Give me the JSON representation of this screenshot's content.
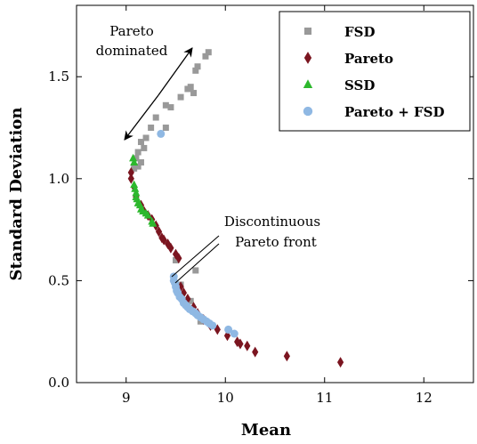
{
  "chart_data": {
    "type": "scatter",
    "xlabel": "Mean",
    "ylabel": "Standard Deviation",
    "xlim": [
      8.5,
      12.5
    ],
    "ylim": [
      0.0,
      1.85
    ],
    "xticks": [
      9,
      10,
      11,
      12
    ],
    "yticks": [
      0.0,
      0.5,
      1.0,
      1.5
    ],
    "grid": false,
    "legend_position": "top-right",
    "annotations": {
      "pareto_dominated": [
        "Pareto",
        "dominated"
      ],
      "discontinuous": [
        "Discontinuous",
        "Pareto front"
      ]
    },
    "series": [
      {
        "name": "FSD",
        "marker": "square",
        "color": "#999999",
        "points": [
          [
            9.8,
            1.6
          ],
          [
            9.83,
            1.62
          ],
          [
            9.7,
            1.53
          ],
          [
            9.72,
            1.55
          ],
          [
            9.62,
            1.44
          ],
          [
            9.65,
            1.45
          ],
          [
            9.68,
            1.42
          ],
          [
            9.55,
            1.4
          ],
          [
            9.45,
            1.35
          ],
          [
            9.4,
            1.36
          ],
          [
            9.3,
            1.3
          ],
          [
            9.25,
            1.25
          ],
          [
            9.4,
            1.25
          ],
          [
            9.2,
            1.2
          ],
          [
            9.15,
            1.18
          ],
          [
            9.18,
            1.15
          ],
          [
            9.12,
            1.13
          ],
          [
            9.1,
            1.1
          ],
          [
            9.15,
            1.08
          ],
          [
            9.08,
            1.05
          ],
          [
            9.12,
            1.06
          ],
          [
            9.5,
            0.6
          ],
          [
            9.7,
            0.55
          ],
          [
            9.55,
            0.48
          ],
          [
            9.65,
            0.4
          ],
          [
            9.75,
            0.3
          ]
        ]
      },
      {
        "name": "Pareto",
        "marker": "diamond",
        "color": "#7b1520",
        "points": [
          [
            9.05,
            1.03
          ],
          [
            9.05,
            1.0
          ],
          [
            9.08,
            0.96
          ],
          [
            9.1,
            0.91
          ],
          [
            9.15,
            0.87
          ],
          [
            9.18,
            0.84
          ],
          [
            9.22,
            0.82
          ],
          [
            9.26,
            0.8
          ],
          [
            9.3,
            0.77
          ],
          [
            9.33,
            0.74
          ],
          [
            9.36,
            0.71
          ],
          [
            9.38,
            0.7
          ],
          [
            9.42,
            0.68
          ],
          [
            9.45,
            0.66
          ],
          [
            9.5,
            0.63
          ],
          [
            9.53,
            0.61
          ],
          [
            9.55,
            0.47
          ],
          [
            9.58,
            0.44
          ],
          [
            9.62,
            0.41
          ],
          [
            9.68,
            0.37
          ],
          [
            9.72,
            0.34
          ],
          [
            9.78,
            0.31
          ],
          [
            9.85,
            0.28
          ],
          [
            9.92,
            0.26
          ],
          [
            10.02,
            0.23
          ],
          [
            10.12,
            0.2
          ],
          [
            10.15,
            0.19
          ],
          [
            10.22,
            0.18
          ],
          [
            10.3,
            0.15
          ],
          [
            10.62,
            0.13
          ],
          [
            11.16,
            0.1
          ]
        ]
      },
      {
        "name": "SSD",
        "marker": "triangle",
        "color": "#2db82d",
        "points": [
          [
            9.07,
            1.1
          ],
          [
            9.08,
            1.08
          ],
          [
            9.08,
            0.97
          ],
          [
            9.09,
            0.95
          ],
          [
            9.1,
            0.93
          ],
          [
            9.1,
            0.91
          ],
          [
            9.11,
            0.9
          ],
          [
            9.12,
            0.88
          ],
          [
            9.14,
            0.87
          ],
          [
            9.15,
            0.85
          ],
          [
            9.17,
            0.84
          ],
          [
            9.2,
            0.83
          ],
          [
            9.22,
            0.82
          ],
          [
            9.26,
            0.79
          ],
          [
            9.27,
            0.78
          ]
        ]
      },
      {
        "name": "Pareto + FSD",
        "marker": "circle",
        "color": "#8fb8e3",
        "points": [
          [
            9.35,
            1.22
          ],
          [
            9.48,
            0.52
          ],
          [
            9.48,
            0.5
          ],
          [
            9.49,
            0.49
          ],
          [
            9.5,
            0.47
          ],
          [
            9.51,
            0.45
          ],
          [
            9.52,
            0.44
          ],
          [
            9.54,
            0.42
          ],
          [
            9.56,
            0.41
          ],
          [
            9.58,
            0.39
          ],
          [
            9.6,
            0.38
          ],
          [
            9.62,
            0.37
          ],
          [
            9.64,
            0.36
          ],
          [
            9.67,
            0.35
          ],
          [
            9.7,
            0.34
          ],
          [
            9.72,
            0.33
          ],
          [
            9.75,
            0.32
          ],
          [
            9.78,
            0.31
          ],
          [
            9.81,
            0.3
          ],
          [
            9.84,
            0.29
          ],
          [
            9.87,
            0.28
          ],
          [
            10.03,
            0.26
          ],
          [
            10.09,
            0.24
          ]
        ]
      }
    ]
  }
}
